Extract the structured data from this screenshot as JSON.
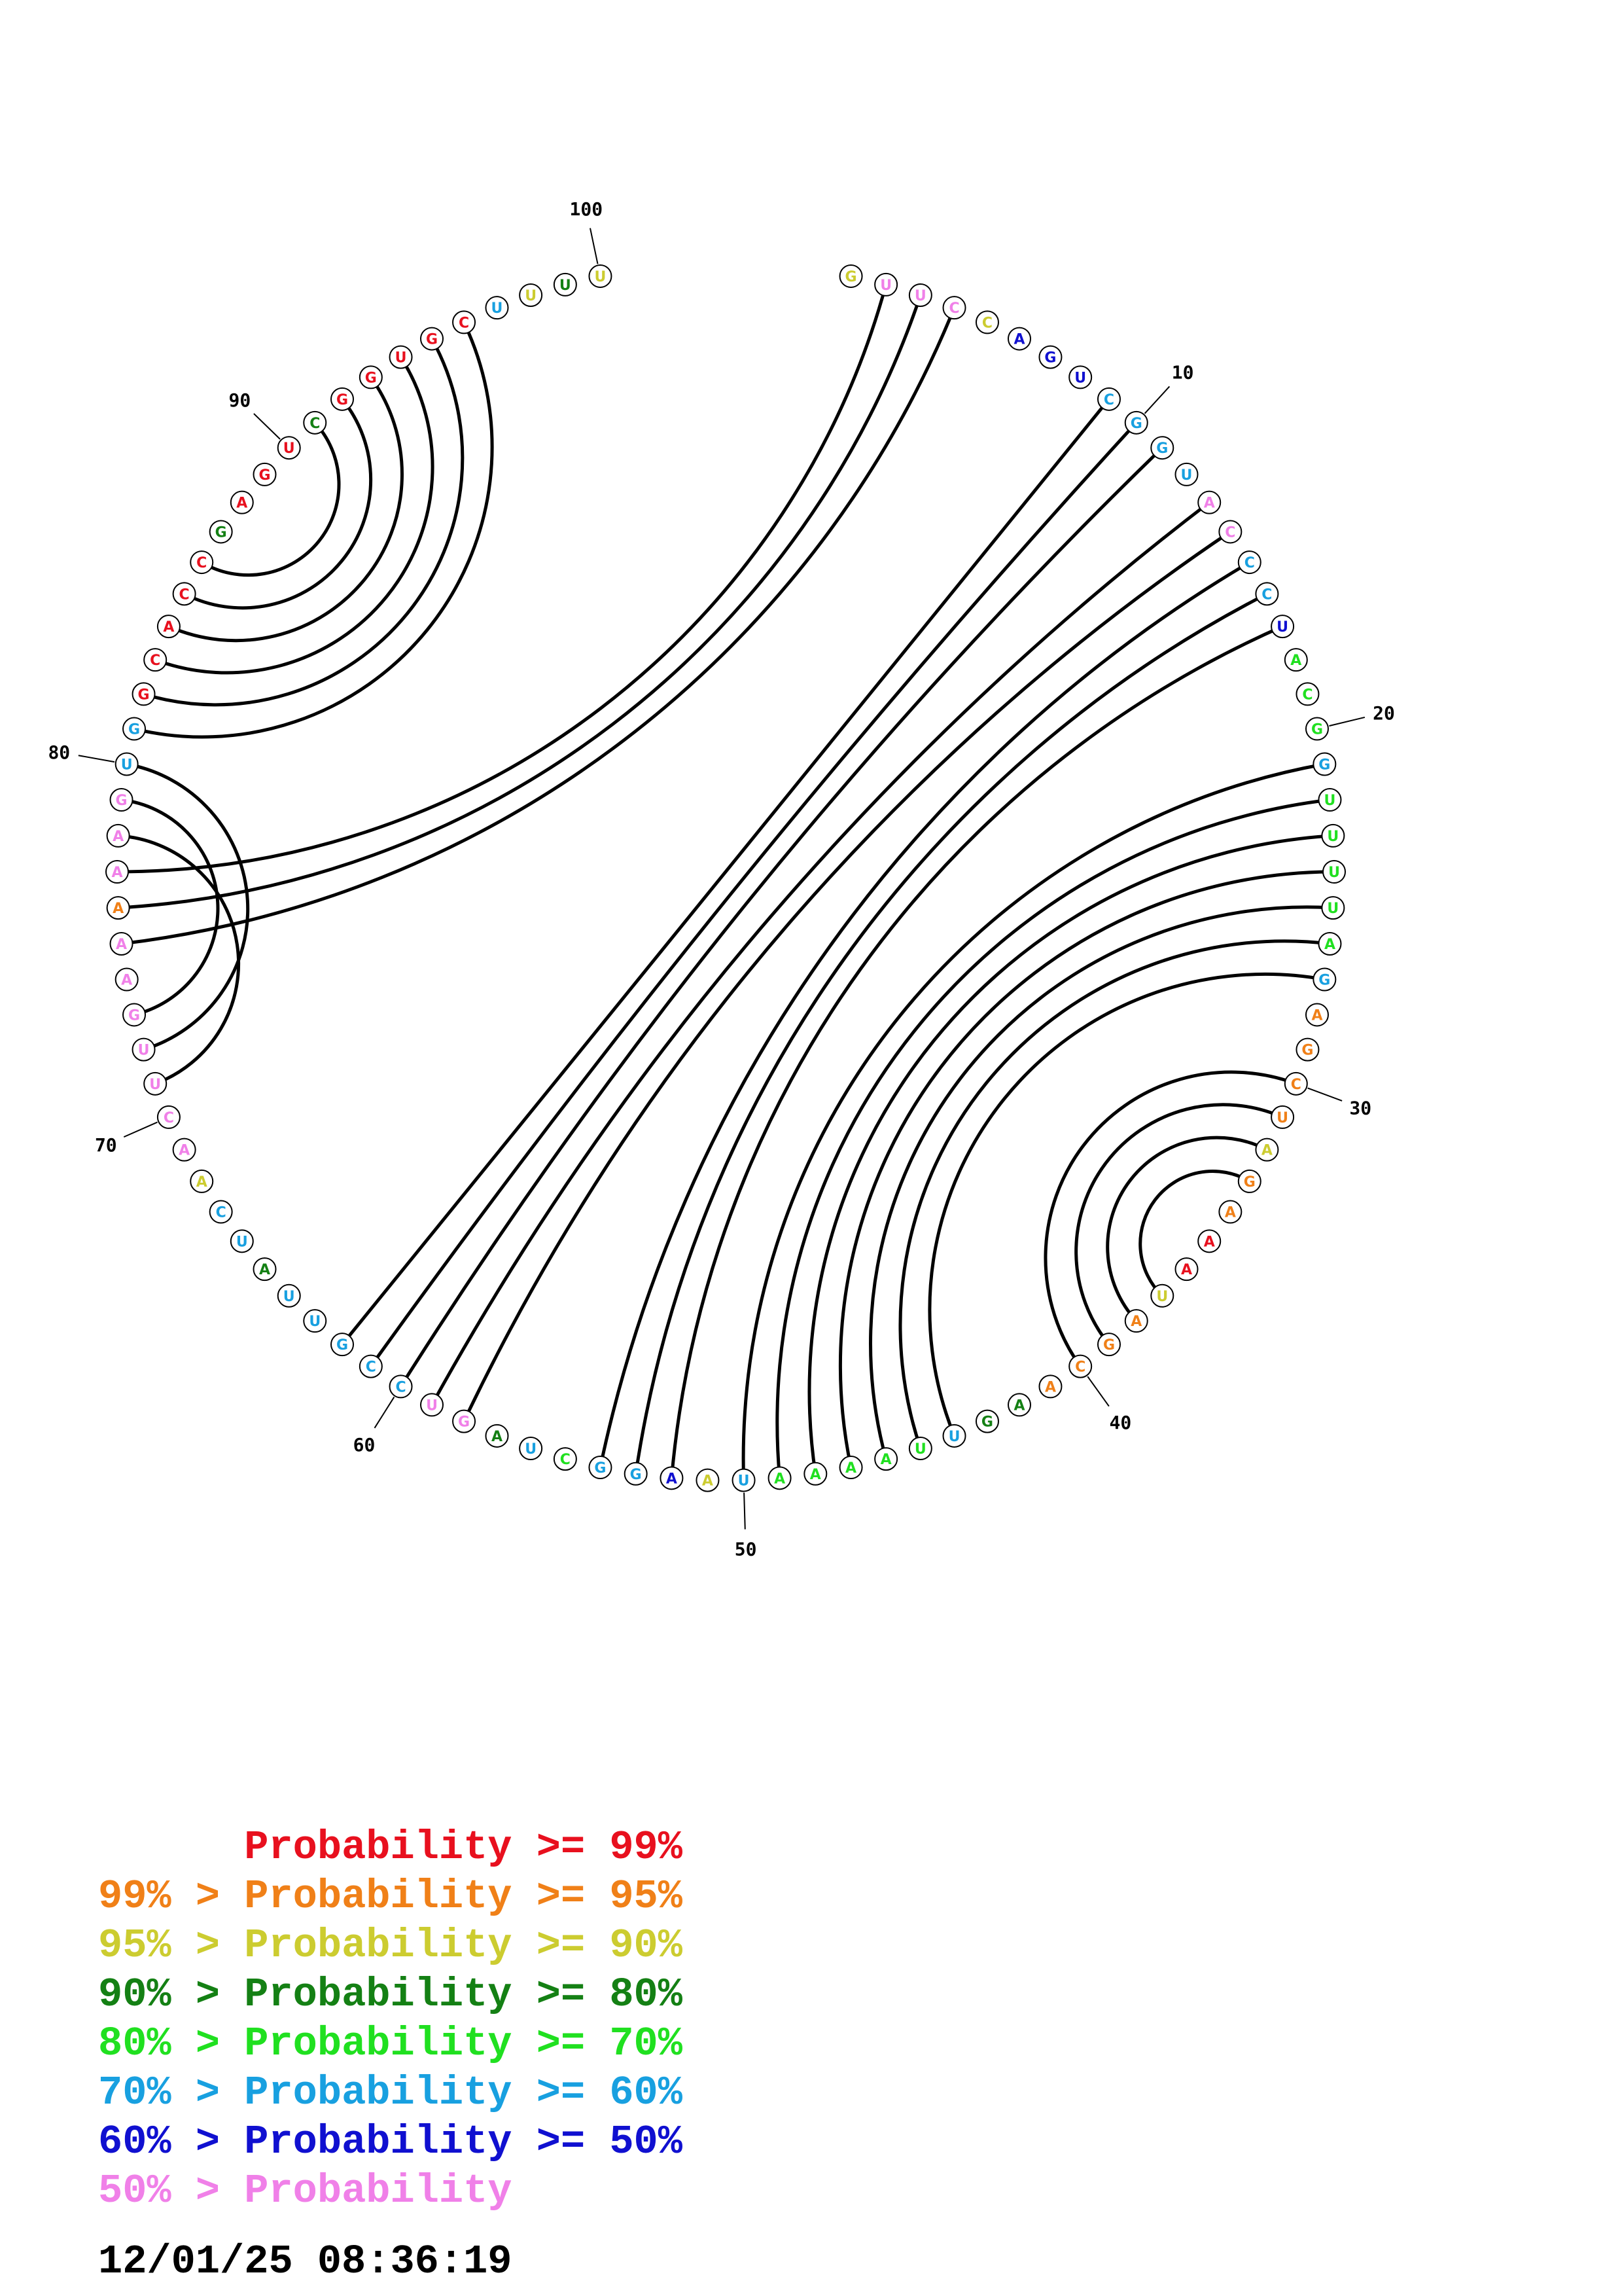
{
  "palette": {
    "p99": "#e8101e",
    "p95": "#f08018",
    "p90": "#cccc30",
    "p80": "#148014",
    "p70": "#20e020",
    "p60": "#18a0e0",
    "p50": "#1010d0",
    "p0": "#f080e8"
  },
  "nucleotides": [
    {
      "i": 1,
      "b": "G",
      "c": "p90"
    },
    {
      "i": 2,
      "b": "U",
      "c": "p0"
    },
    {
      "i": 3,
      "b": "U",
      "c": "p0"
    },
    {
      "i": 4,
      "b": "C",
      "c": "p0"
    },
    {
      "i": 5,
      "b": "C",
      "c": "p90"
    },
    {
      "i": 6,
      "b": "A",
      "c": "p50"
    },
    {
      "i": 7,
      "b": "G",
      "c": "p50"
    },
    {
      "i": 8,
      "b": "U",
      "c": "p50"
    },
    {
      "i": 9,
      "b": "C",
      "c": "p60"
    },
    {
      "i": 10,
      "b": "G",
      "c": "p60"
    },
    {
      "i": 11,
      "b": "G",
      "c": "p60"
    },
    {
      "i": 12,
      "b": "U",
      "c": "p60"
    },
    {
      "i": 13,
      "b": "A",
      "c": "p0"
    },
    {
      "i": 14,
      "b": "C",
      "c": "p0"
    },
    {
      "i": 15,
      "b": "C",
      "c": "p60"
    },
    {
      "i": 16,
      "b": "C",
      "c": "p60"
    },
    {
      "i": 17,
      "b": "U",
      "c": "p50"
    },
    {
      "i": 18,
      "b": "A",
      "c": "p70"
    },
    {
      "i": 19,
      "b": "C",
      "c": "p70"
    },
    {
      "i": 20,
      "b": "G",
      "c": "p70"
    },
    {
      "i": 21,
      "b": "G",
      "c": "p60"
    },
    {
      "i": 22,
      "b": "U",
      "c": "p70"
    },
    {
      "i": 23,
      "b": "U",
      "c": "p70"
    },
    {
      "i": 24,
      "b": "U",
      "c": "p70"
    },
    {
      "i": 25,
      "b": "U",
      "c": "p70"
    },
    {
      "i": 26,
      "b": "A",
      "c": "p70"
    },
    {
      "i": 27,
      "b": "G",
      "c": "p60"
    },
    {
      "i": 28,
      "b": "A",
      "c": "p95"
    },
    {
      "i": 29,
      "b": "G",
      "c": "p95"
    },
    {
      "i": 30,
      "b": "C",
      "c": "p95"
    },
    {
      "i": 31,
      "b": "U",
      "c": "p95"
    },
    {
      "i": 32,
      "b": "A",
      "c": "p90"
    },
    {
      "i": 33,
      "b": "G",
      "c": "p95"
    },
    {
      "i": 34,
      "b": "A",
      "c": "p95"
    },
    {
      "i": 35,
      "b": "A",
      "c": "p99"
    },
    {
      "i": 36,
      "b": "A",
      "c": "p99"
    },
    {
      "i": 37,
      "b": "U",
      "c": "p90"
    },
    {
      "i": 38,
      "b": "A",
      "c": "p95"
    },
    {
      "i": 39,
      "b": "G",
      "c": "p95"
    },
    {
      "i": 40,
      "b": "C",
      "c": "p95"
    },
    {
      "i": 41,
      "b": "A",
      "c": "p95"
    },
    {
      "i": 42,
      "b": "A",
      "c": "p80"
    },
    {
      "i": 43,
      "b": "G",
      "c": "p80"
    },
    {
      "i": 44,
      "b": "U",
      "c": "p60"
    },
    {
      "i": 45,
      "b": "U",
      "c": "p70"
    },
    {
      "i": 46,
      "b": "A",
      "c": "p70"
    },
    {
      "i": 47,
      "b": "A",
      "c": "p70"
    },
    {
      "i": 48,
      "b": "A",
      "c": "p70"
    },
    {
      "i": 49,
      "b": "A",
      "c": "p70"
    },
    {
      "i": 50,
      "b": "U",
      "c": "p60"
    },
    {
      "i": 51,
      "b": "A",
      "c": "p90"
    },
    {
      "i": 52,
      "b": "A",
      "c": "p50"
    },
    {
      "i": 53,
      "b": "G",
      "c": "p60"
    },
    {
      "i": 54,
      "b": "G",
      "c": "p60"
    },
    {
      "i": 55,
      "b": "C",
      "c": "p70"
    },
    {
      "i": 56,
      "b": "U",
      "c": "p60"
    },
    {
      "i": 57,
      "b": "A",
      "c": "p80"
    },
    {
      "i": 58,
      "b": "G",
      "c": "p0"
    },
    {
      "i": 59,
      "b": "U",
      "c": "p0"
    },
    {
      "i": 60,
      "b": "C",
      "c": "p60"
    },
    {
      "i": 61,
      "b": "C",
      "c": "p60"
    },
    {
      "i": 62,
      "b": "G",
      "c": "p60"
    },
    {
      "i": 63,
      "b": "U",
      "c": "p60"
    },
    {
      "i": 64,
      "b": "U",
      "c": "p60"
    },
    {
      "i": 65,
      "b": "A",
      "c": "p80"
    },
    {
      "i": 66,
      "b": "U",
      "c": "p60"
    },
    {
      "i": 67,
      "b": "C",
      "c": "p60"
    },
    {
      "i": 68,
      "b": "A",
      "c": "p90"
    },
    {
      "i": 69,
      "b": "A",
      "c": "p0"
    },
    {
      "i": 70,
      "b": "C",
      "c": "p0"
    },
    {
      "i": 71,
      "b": "U",
      "c": "p0"
    },
    {
      "i": 72,
      "b": "U",
      "c": "p0"
    },
    {
      "i": 73,
      "b": "G",
      "c": "p0"
    },
    {
      "i": 74,
      "b": "A",
      "c": "p0"
    },
    {
      "i": 75,
      "b": "A",
      "c": "p0"
    },
    {
      "i": 76,
      "b": "A",
      "c": "p95"
    },
    {
      "i": 77,
      "b": "A",
      "c": "p0"
    },
    {
      "i": 78,
      "b": "A",
      "c": "p0"
    },
    {
      "i": 79,
      "b": "G",
      "c": "p0"
    },
    {
      "i": 80,
      "b": "U",
      "c": "p60"
    },
    {
      "i": 81,
      "b": "G",
      "c": "p60"
    },
    {
      "i": 82,
      "b": "G",
      "c": "p99"
    },
    {
      "i": 83,
      "b": "C",
      "c": "p99"
    },
    {
      "i": 84,
      "b": "A",
      "c": "p99"
    },
    {
      "i": 85,
      "b": "C",
      "c": "p99"
    },
    {
      "i": 86,
      "b": "C",
      "c": "p99"
    },
    {
      "i": 87,
      "b": "G",
      "c": "p80"
    },
    {
      "i": 88,
      "b": "A",
      "c": "p99"
    },
    {
      "i": 89,
      "b": "G",
      "c": "p99"
    },
    {
      "i": 90,
      "b": "U",
      "c": "p99"
    },
    {
      "i": 91,
      "b": "C",
      "c": "p80"
    },
    {
      "i": 92,
      "b": "G",
      "c": "p99"
    },
    {
      "i": 93,
      "b": "G",
      "c": "p99"
    },
    {
      "i": 94,
      "b": "U",
      "c": "p99"
    },
    {
      "i": 95,
      "b": "G",
      "c": "p99"
    },
    {
      "i": 96,
      "b": "C",
      "c": "p99"
    },
    {
      "i": 97,
      "b": "U",
      "c": "p60"
    },
    {
      "i": 98,
      "b": "U",
      "c": "p90"
    },
    {
      "i": 99,
      "b": "U",
      "c": "p80"
    },
    {
      "i": 100,
      "b": "U",
      "c": "p90"
    }
  ],
  "pairs": [
    [
      2,
      77
    ],
    [
      3,
      76
    ],
    [
      4,
      75
    ],
    [
      9,
      62
    ],
    [
      10,
      61
    ],
    [
      11,
      60
    ],
    [
      13,
      59
    ],
    [
      14,
      58
    ],
    [
      15,
      54
    ],
    [
      16,
      53
    ],
    [
      17,
      52
    ],
    [
      21,
      50
    ],
    [
      22,
      49
    ],
    [
      23,
      48
    ],
    [
      24,
      47
    ],
    [
      25,
      46
    ],
    [
      26,
      45
    ],
    [
      27,
      44
    ],
    [
      30,
      40
    ],
    [
      31,
      39
    ],
    [
      32,
      38
    ],
    [
      33,
      37
    ],
    [
      73,
      79
    ],
    [
      72,
      80
    ],
    [
      71,
      78
    ],
    [
      81,
      96
    ],
    [
      82,
      95
    ],
    [
      83,
      94
    ],
    [
      84,
      93
    ],
    [
      85,
      92
    ],
    [
      86,
      91
    ]
  ],
  "ticks": [
    "10",
    "20",
    "30",
    "40",
    "50",
    "60",
    "70",
    "80",
    "90",
    "100"
  ],
  "legend": [
    {
      "prefix": "",
      "label": "Probability",
      "suffix": " >= 99%",
      "color": "p99"
    },
    {
      "prefix": "99% > ",
      "label": "Probability",
      "suffix": " >= 95%",
      "color": "p95"
    },
    {
      "prefix": "95% > ",
      "label": "Probability",
      "suffix": " >= 90%",
      "color": "p90"
    },
    {
      "prefix": "90% > ",
      "label": "Probability",
      "suffix": " >= 80%",
      "color": "p80"
    },
    {
      "prefix": "80% > ",
      "label": "Probability",
      "suffix": " >= 70%",
      "color": "p70"
    },
    {
      "prefix": "70% > ",
      "label": "Probability",
      "suffix": " >= 60%",
      "color": "p60"
    },
    {
      "prefix": "60% > ",
      "label": "Probability",
      "suffix": " >= 50%",
      "color": "p50"
    },
    {
      "prefix": "50% > ",
      "label": "Probability",
      "suffix": "",
      "color": "p0"
    }
  ],
  "timestamp": "12/01/25 08:36:19"
}
